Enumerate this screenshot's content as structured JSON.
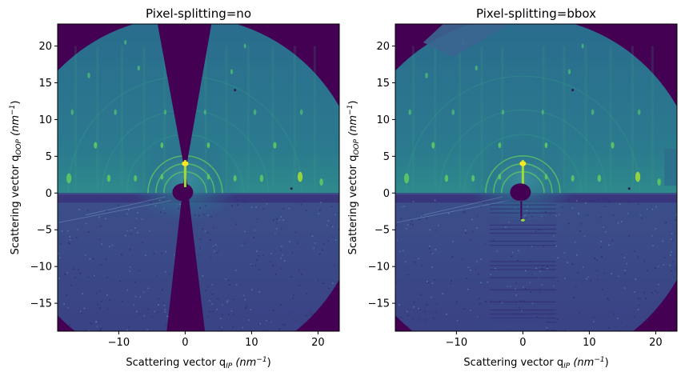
{
  "chart_data": [
    {
      "type": "heatmap",
      "title": "Pixel-splitting=no",
      "xlabel": {
        "main": "Scattering vector q",
        "sub": "IP",
        "unit_prefix": "(nm",
        "unit_sup": "−1",
        "unit_suffix": ")"
      },
      "ylabel": {
        "main": "Scattering vector q",
        "sub": "OOP",
        "unit_prefix": "(nm",
        "unit_sup": "−1",
        "unit_suffix": ")"
      },
      "xlim": [
        -19.2,
        23.2
      ],
      "ylim": [
        -18.8,
        23.0
      ],
      "xticks": [
        -10,
        0,
        10,
        20
      ],
      "yticks": [
        -15,
        -10,
        -5,
        0,
        5,
        10,
        15,
        20
      ],
      "xtick_labels": [
        "−10",
        "0",
        "10",
        "20"
      ],
      "ytick_labels": [
        "−15",
        "−10",
        "−5",
        "0",
        "5",
        "10",
        "15",
        "20"
      ],
      "colormap": [
        "#440154",
        "#3b528b",
        "#21918c",
        "#5ec962",
        "#fde725"
      ],
      "background": "#440154",
      "grid": false
    },
    {
      "type": "heatmap",
      "title": "Pixel-splitting=bbox",
      "xlabel": {
        "main": "Scattering vector q",
        "sub": "IP",
        "unit_prefix": "(nm",
        "unit_sup": "−1",
        "unit_suffix": ")"
      },
      "ylabel": {
        "main": "Scattering vector q",
        "sub": "OOP",
        "unit_prefix": "(nm",
        "unit_sup": "−1",
        "unit_suffix": ")"
      },
      "xlim": [
        -19.2,
        23.2
      ],
      "ylim": [
        -18.8,
        23.0
      ],
      "xticks": [
        -10,
        0,
        10,
        20
      ],
      "yticks": [
        -15,
        -10,
        -5,
        0,
        5,
        10,
        15,
        20
      ],
      "xtick_labels": [
        "−10",
        "0",
        "10",
        "20"
      ],
      "ytick_labels": [
        "−15",
        "−10",
        "−5",
        "0",
        "5",
        "10",
        "15",
        "20"
      ],
      "colormap": [
        "#440154",
        "#3b528b",
        "#21918c",
        "#5ec962",
        "#fde725"
      ],
      "background": "#440154",
      "grid": false
    }
  ]
}
